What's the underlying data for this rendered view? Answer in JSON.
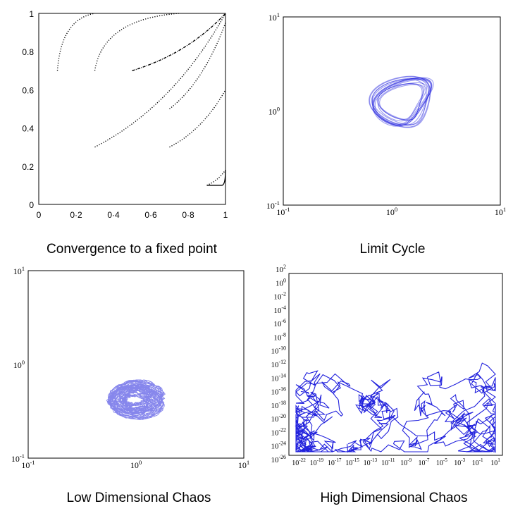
{
  "chart_data": [
    {
      "type": "line",
      "panel": "top-left",
      "caption": "Convergence to a fixed point",
      "x_ticks": [
        "0",
        "0·2",
        "0·4",
        "0·6",
        "0·8",
        "1"
      ],
      "y_ticks": [
        "0",
        "0.2",
        "0.4",
        "0.6",
        "0.8",
        "1"
      ],
      "xlim": [
        0,
        1
      ],
      "ylim": [
        0,
        1
      ],
      "line_color": "#000000",
      "series": [
        {
          "start": [
            0.1,
            0.7
          ],
          "end": [
            0.3,
            1.0
          ]
        },
        {
          "start": [
            0.3,
            0.7
          ],
          "end": [
            0.75,
            1.0
          ]
        },
        {
          "start": [
            0.5,
            0.7
          ],
          "end": [
            1.0,
            1.0
          ]
        },
        {
          "start": [
            0.3,
            0.3
          ],
          "end": [
            1.0,
            1.0
          ]
        },
        {
          "start": [
            0.7,
            0.5
          ],
          "end": [
            1.0,
            0.95
          ]
        },
        {
          "start": [
            0.7,
            0.3
          ],
          "end": [
            1.0,
            0.6
          ]
        },
        {
          "start": [
            0.9,
            0.1
          ],
          "end": [
            1.0,
            0.18
          ]
        }
      ]
    },
    {
      "type": "line",
      "panel": "top-right",
      "caption": "Limit Cycle",
      "scale": "log",
      "x_ticks": [
        "10^-1",
        "10^0",
        "10^1"
      ],
      "y_ticks": [
        "10^-1",
        "10^0",
        "10^1"
      ],
      "xlim": [
        0.1,
        10
      ],
      "ylim": [
        0.1,
        10
      ],
      "line_color": "#2222dd"
    },
    {
      "type": "line",
      "panel": "bottom-left",
      "caption": "Low Dimensional Chaos",
      "scale": "log",
      "x_ticks": [
        "10^-1",
        "10^0",
        "10^1"
      ],
      "y_ticks": [
        "10^-1",
        "10^0",
        "10^1"
      ],
      "xlim": [
        0.1,
        10
      ],
      "ylim": [
        0.1,
        10
      ],
      "line_color": "#2222dd"
    },
    {
      "type": "line",
      "panel": "bottom-right",
      "caption": "High Dimensional Chaos",
      "scale": "log",
      "x_ticks": [
        "10^-22",
        "10^-19",
        "10^-17",
        "10^-15",
        "10^-13",
        "10^-11",
        "10^-9",
        "10^-7",
        "10^-5",
        "10^-3",
        "10^-1",
        "10^1"
      ],
      "y_ticks": [
        "10^2",
        "10^0",
        "10^-2",
        "10^-4",
        "10^-6",
        "10^-8",
        "10^-10",
        "10^-12",
        "10^-14",
        "10^-16",
        "10^-18",
        "10^-20",
        "10^-22",
        "10^-24",
        "10^-26"
      ],
      "xlim": [
        1e-23,
        100.0
      ],
      "ylim": [
        1e-27,
        100.0
      ],
      "line_color": "#2222dd"
    }
  ]
}
